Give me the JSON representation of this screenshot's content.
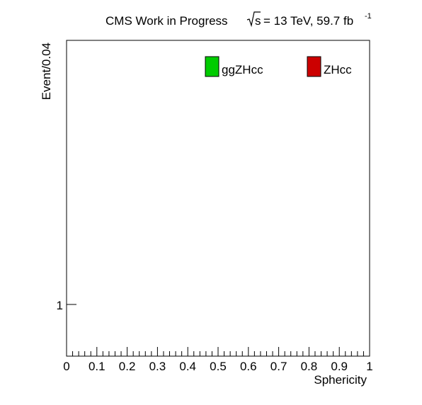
{
  "header": {
    "title": "CMS Work in Progress",
    "lumi_prefix": "s",
    "lumi_text": "= 13 TeV, 59.7 fb",
    "lumi_exponent": "-1"
  },
  "chart_data": {
    "type": "bar",
    "xlabel": "Sphericity",
    "ylabel": "Event/0.04",
    "xlim": [
      0,
      1
    ],
    "ylog": true,
    "x_ticks": [
      "0",
      "0.1",
      "0.2",
      "0.3",
      "0.4",
      "0.5",
      "0.6",
      "0.7",
      "0.8",
      "0.9",
      "1"
    ],
    "y_ticks": [
      "1"
    ],
    "legend_position": "top-right",
    "series": [
      {
        "name": "ggZHcc",
        "color": "#00cc00",
        "values": []
      },
      {
        "name": "ZHcc",
        "color": "#cc0000",
        "values": []
      }
    ]
  }
}
